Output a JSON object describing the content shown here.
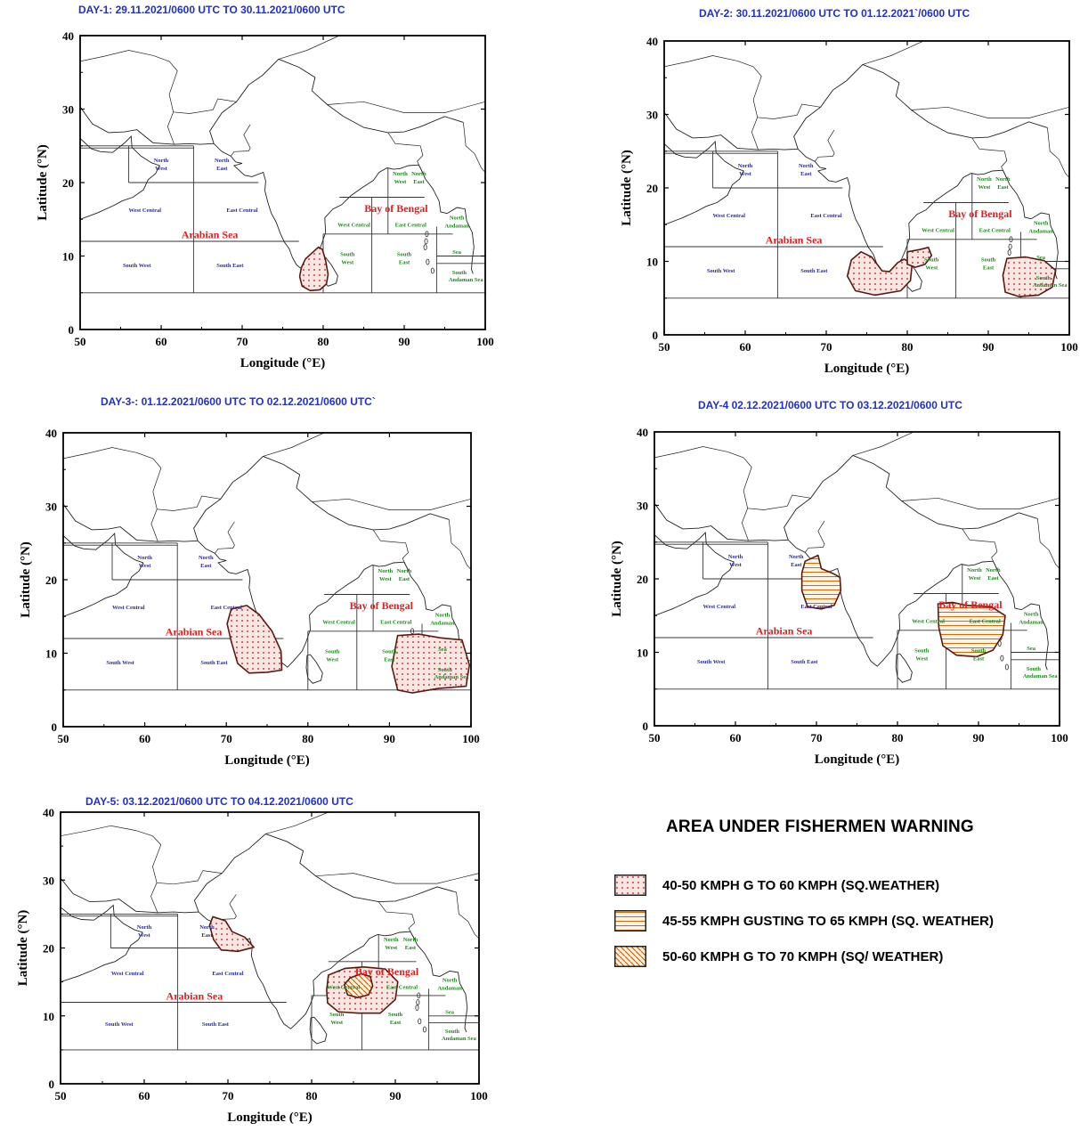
{
  "panels": [
    {
      "title": "DAY-1: 29.11.2021/0600 UTC TO  30.11.2021/0600 UTC"
    },
    {
      "title": "DAY-2: 30.11.2021/0600 UTC TO  01.12.2021`/0600 UTC"
    },
    {
      "title": "DAY-3-: 01.12.2021/0600 UTC TO  02.12.2021/0600 UTC`"
    },
    {
      "title": "DAY-4  02.12.2021/0600 UTC TO 03.12.2021/0600 UTC"
    },
    {
      "title": "DAY-5: 03.12.2021/0600 UTC TO  04.12.2021/0600 UTC"
    }
  ],
  "axes": {
    "x_label": "Longitude (°E)",
    "y_label": "Latitude (°N)",
    "x_ticks": [
      "50",
      "60",
      "70",
      "80",
      "90",
      "100"
    ],
    "y_ticks": [
      "0",
      "10",
      "20",
      "30",
      "40"
    ],
    "x_range": [
      50,
      100
    ],
    "y_range": [
      0,
      40
    ]
  },
  "regions": {
    "arabian_sea": "Arabian Sea",
    "bay_of_bengal": "Bay of Bengal",
    "labels": {
      "as_north_west": "North West",
      "as_north_east": "North East",
      "as_west_central": "West Central",
      "as_east_central": "East Central",
      "as_south_west": "South West",
      "as_south_east": "South East",
      "bob_north_west": "North West",
      "bob_north_east": "North East",
      "bob_west_central": "West Central",
      "bob_east_central": "East Central",
      "bob_south_west": "South West",
      "bob_south_east": "South East",
      "andaman_north": "North Andaman",
      "andaman_sea": "Sea",
      "andaman_south": "South Andaman Sea"
    }
  },
  "colors": {
    "title": "#1f2fd0",
    "arabian_region_text": "#2a2aa0",
    "bengal_region_text": "#1a8a1a",
    "sea_name": "#e02020",
    "hatch_fill": "#f7e0dc",
    "hatch_mark": "#b01818",
    "hatch_orange": "#d46a00"
  },
  "warning_areas": [
    {
      "day": 1,
      "pattern": "dots",
      "name": "South of India / Comorin"
    },
    {
      "day": 2,
      "pattern": "dots",
      "name": "Comorin, SW Bay, Andaman Sea"
    },
    {
      "day": 3,
      "pattern": "dots",
      "name": "EC Arabian Sea, SE Bay & Andaman Sea"
    },
    {
      "day": 4,
      "pattern": "horizontal",
      "name": "NE Arabian Sea, Central Bay of Bengal"
    },
    {
      "day": 5,
      "pattern": "dots+diagonal",
      "name": "NE Arabian Sea, WC Bay of Bengal"
    }
  ],
  "legend": {
    "title": "AREA UNDER FISHERMEN WARNING",
    "items": [
      {
        "pattern": "dots",
        "label": "40-50 KMPH G TO 60 KMPH (SQ.WEATHER)"
      },
      {
        "pattern": "horizontal",
        "label": "45-55 KMPH GUSTING TO 65 KMPH  (SQ. WEATHER)"
      },
      {
        "pattern": "diagonal",
        "label": "50-60 KMPH  G TO 70 KMPH  (SQ/ WEATHER)"
      }
    ]
  }
}
